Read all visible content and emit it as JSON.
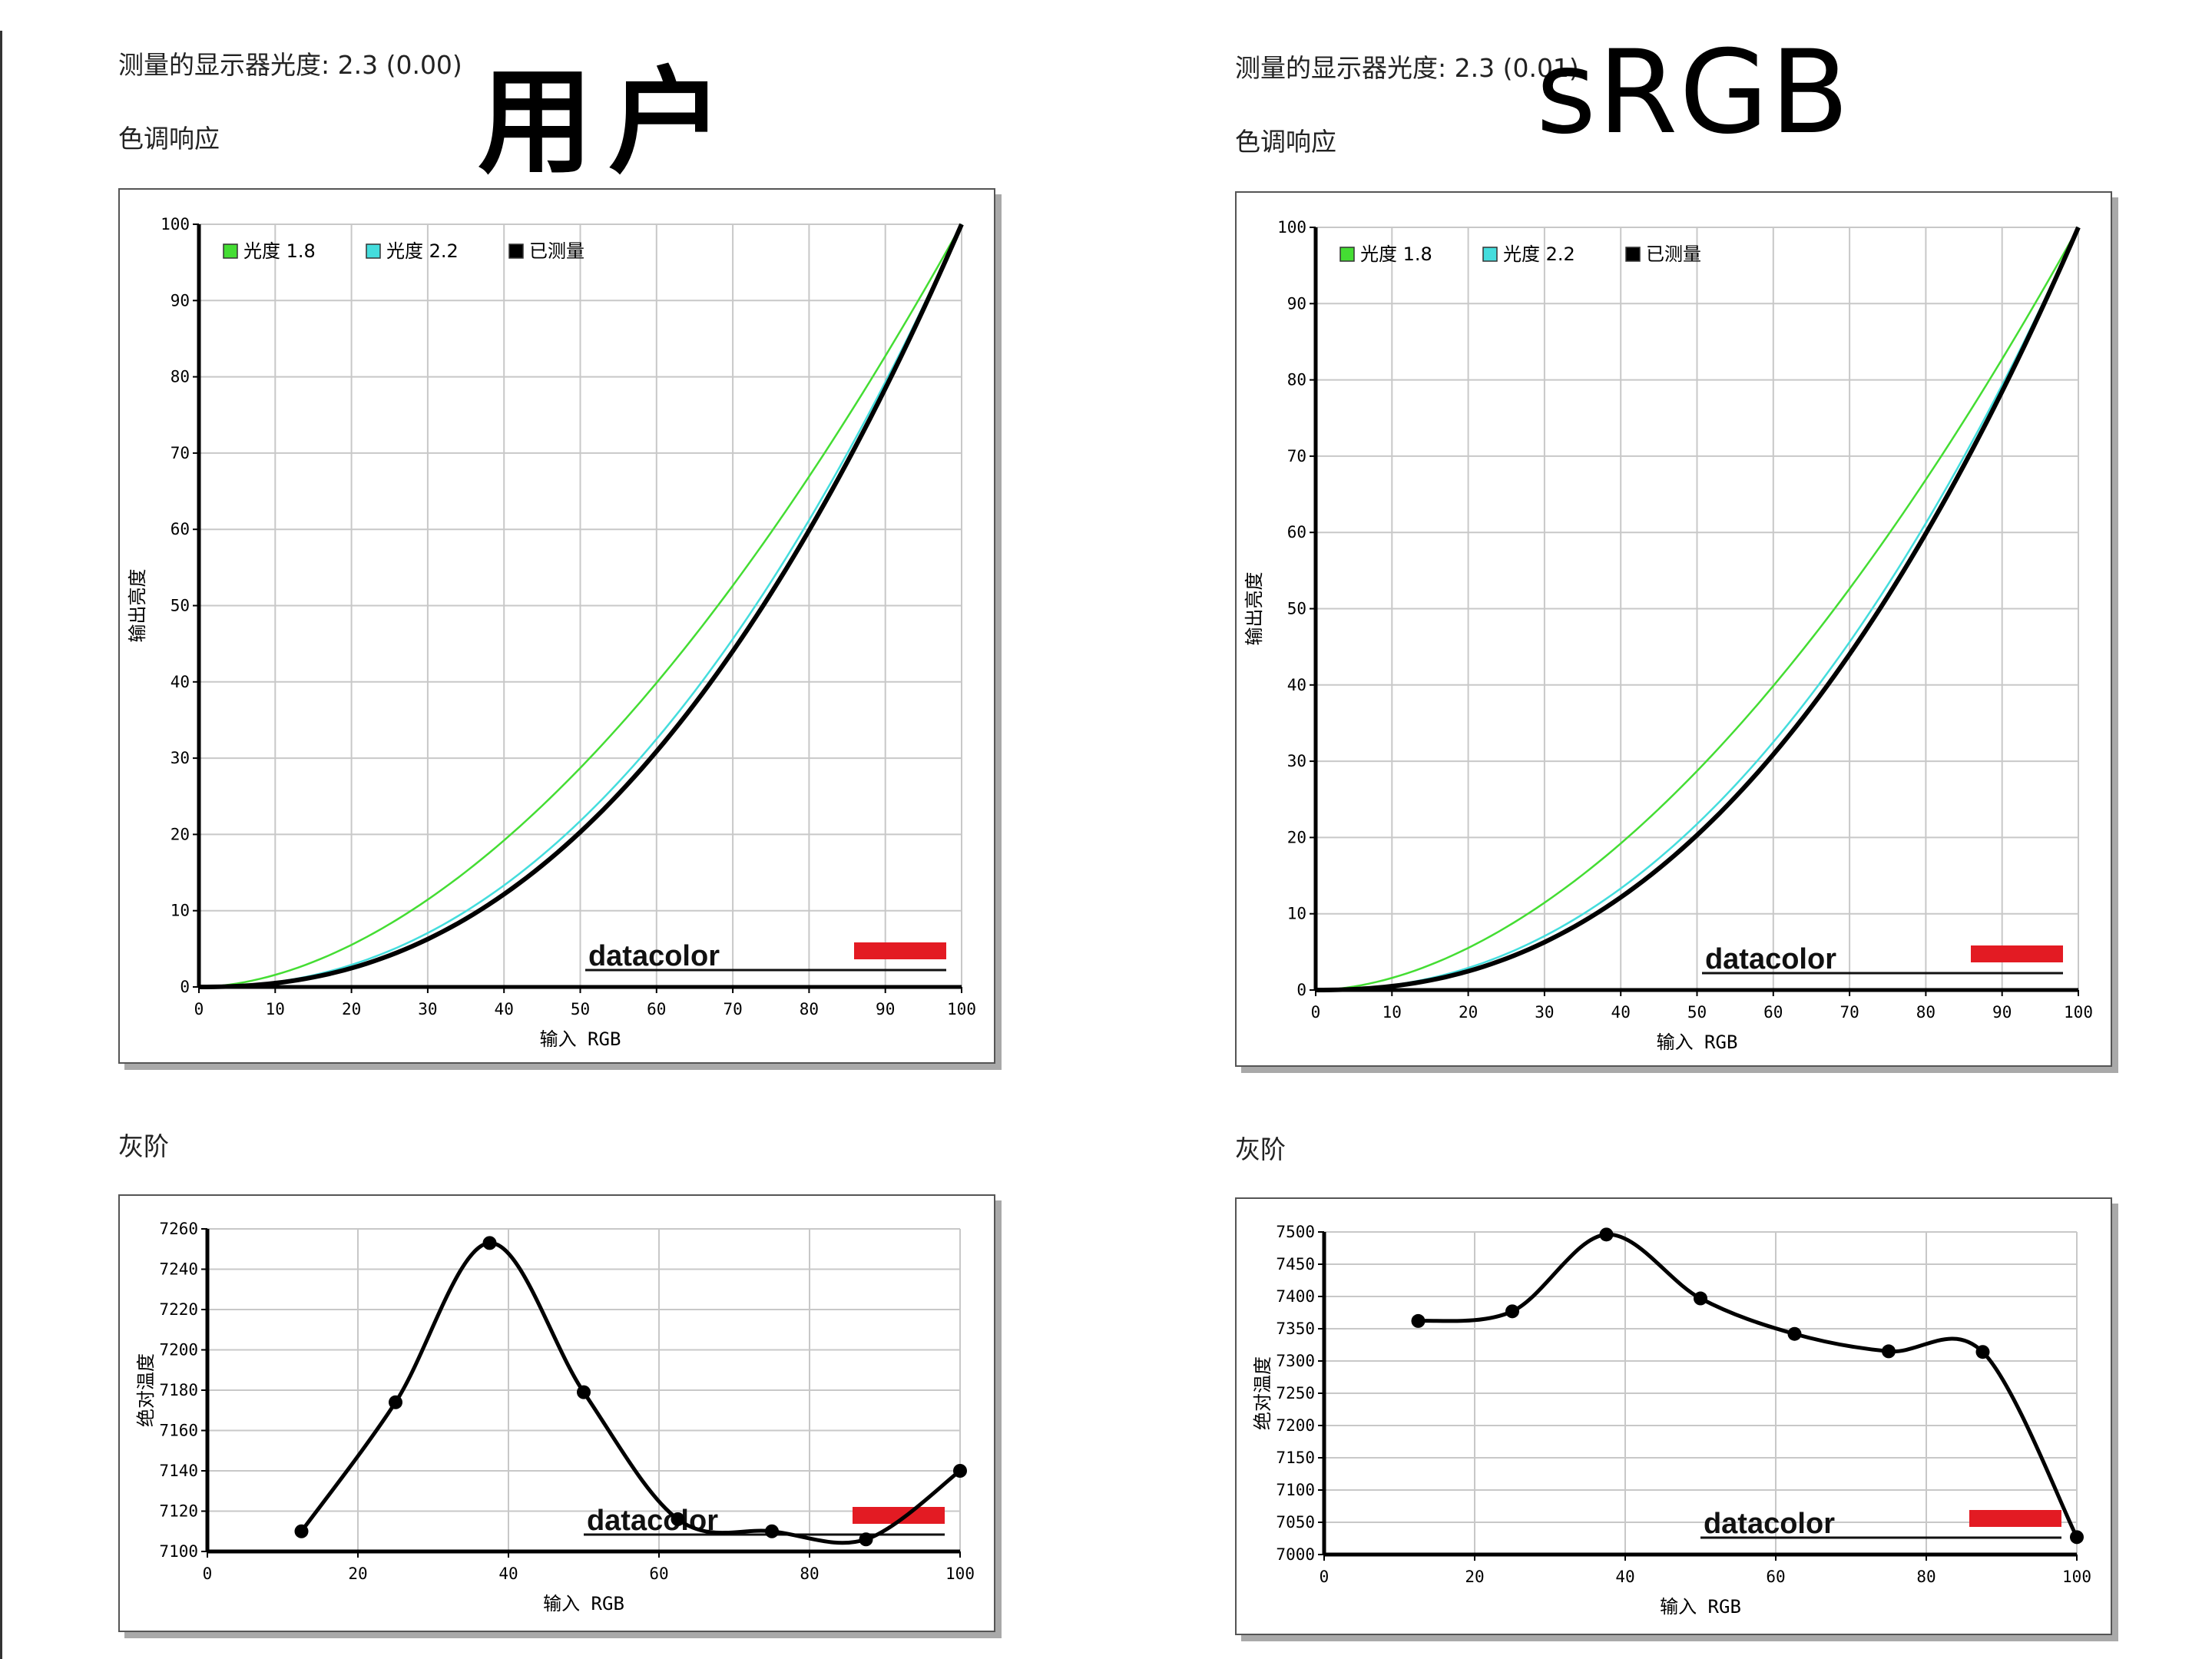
{
  "left": {
    "gamma_label": "测量的显示器光度:  2.3 (0.00)",
    "overlay": "用户",
    "tone_title": "色调响应",
    "gray_title": "灰阶"
  },
  "right": {
    "gamma_label": "测量的显示器光度:  2.3 (0.01)",
    "overlay": "sRGB",
    "tone_title": "色调响应",
    "gray_title": "灰阶"
  },
  "brand": "datacolor",
  "colors": {
    "gamma18": "#44dd33",
    "gamma22": "#44dddd",
    "measured": "#000000",
    "brand_red": "#e31b23"
  },
  "chart_data": [
    {
      "id": "tone-left",
      "type": "line",
      "xlabel": "输入 RGB",
      "ylabel": "输出亮度",
      "xlim": [
        0,
        100
      ],
      "ylim": [
        0,
        100
      ],
      "xticks": [
        0,
        10,
        20,
        30,
        40,
        50,
        60,
        70,
        80,
        90,
        100
      ],
      "yticks": [
        0,
        10,
        20,
        30,
        40,
        50,
        60,
        70,
        80,
        90,
        100
      ],
      "grid": true,
      "legend_position": "top-left",
      "series": [
        {
          "name": "光度 1.8",
          "color": "#44dd33",
          "gamma": 1.8
        },
        {
          "name": "光度 2.2",
          "color": "#44dddd",
          "gamma": 2.2
        },
        {
          "name": "已测量",
          "color": "#000000",
          "gamma": 2.3
        }
      ]
    },
    {
      "id": "tone-right",
      "type": "line",
      "xlabel": "输入 RGB",
      "ylabel": "输出亮度",
      "xlim": [
        0,
        100
      ],
      "ylim": [
        0,
        100
      ],
      "xticks": [
        0,
        10,
        20,
        30,
        40,
        50,
        60,
        70,
        80,
        90,
        100
      ],
      "yticks": [
        0,
        10,
        20,
        30,
        40,
        50,
        60,
        70,
        80,
        90,
        100
      ],
      "grid": true,
      "legend_position": "top-left",
      "series": [
        {
          "name": "光度 1.8",
          "color": "#44dd33",
          "gamma": 1.8
        },
        {
          "name": "光度 2.2",
          "color": "#44dddd",
          "gamma": 2.2
        },
        {
          "name": "已测量",
          "color": "#000000",
          "gamma": 2.3
        }
      ]
    },
    {
      "id": "gray-left",
      "type": "line",
      "xlabel": "输入 RGB",
      "ylabel": "绝对温度",
      "xlim": [
        0,
        100
      ],
      "ylim": [
        7100,
        7260
      ],
      "xticks": [
        0,
        20,
        40,
        60,
        80,
        100
      ],
      "yticks": [
        7100,
        7120,
        7140,
        7160,
        7180,
        7200,
        7220,
        7240,
        7260
      ],
      "grid": true,
      "series": [
        {
          "name": "",
          "color": "#000000",
          "x": [
            12.5,
            25,
            37.5,
            50,
            62.5,
            75,
            87.5,
            100
          ],
          "y": [
            7110,
            7174,
            7253,
            7179,
            7116,
            7110,
            7106,
            7140
          ]
        }
      ]
    },
    {
      "id": "gray-right",
      "type": "line",
      "xlabel": "输入 RGB",
      "ylabel": "绝对温度",
      "xlim": [
        0,
        100
      ],
      "ylim": [
        7000,
        7500
      ],
      "xticks": [
        0,
        20,
        40,
        60,
        80,
        100
      ],
      "yticks": [
        7000,
        7050,
        7100,
        7150,
        7200,
        7250,
        7300,
        7350,
        7400,
        7450,
        7500
      ],
      "grid": true,
      "series": [
        {
          "name": "",
          "color": "#000000",
          "x": [
            12.5,
            25,
            37.5,
            50,
            62.5,
            75,
            87.5,
            100
          ],
          "y": [
            7362,
            7377,
            7496,
            7397,
            7342,
            7315,
            7314,
            7027
          ]
        }
      ]
    }
  ]
}
